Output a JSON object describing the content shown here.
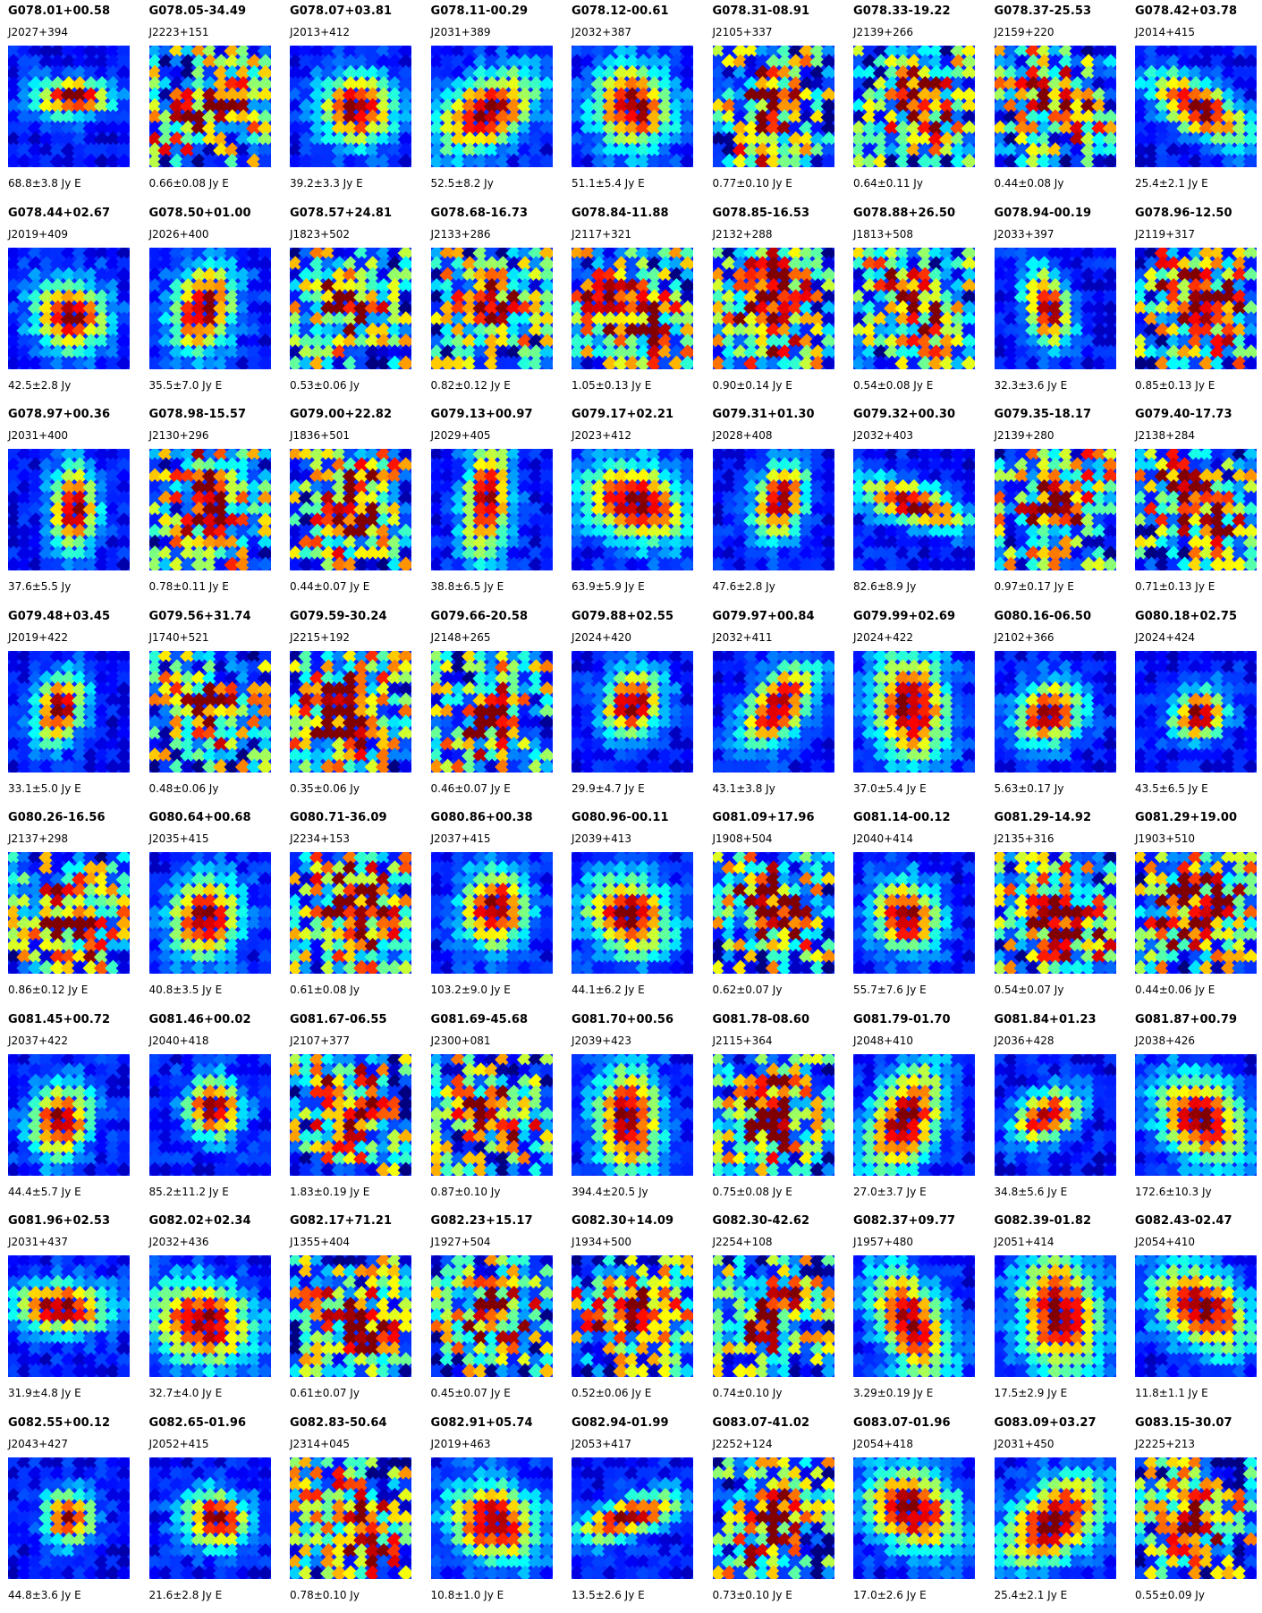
{
  "sources": [
    {
      "name": "G078.01+00.58",
      "jname": "J2027+394",
      "flux": "68.8±3.8 Jy E"
    },
    {
      "name": "G078.05-34.49",
      "jname": "J2223+151",
      "flux": "0.66±0.08 Jy E"
    },
    {
      "name": "G078.07+03.81",
      "jname": "J2013+412",
      "flux": "39.2±3.3 Jy E"
    },
    {
      "name": "G078.11-00.29",
      "jname": "J2031+389",
      "flux": "52.5±8.2 Jy"
    },
    {
      "name": "G078.12-00.61",
      "jname": "J2032+387",
      "flux": "51.1±5.4 Jy E"
    },
    {
      "name": "G078.31-08.91",
      "jname": "J2105+337",
      "flux": "0.77±0.10 Jy E"
    },
    {
      "name": "G078.33-19.22",
      "jname": "J2139+266",
      "flux": "0.64±0.11 Jy"
    },
    {
      "name": "G078.37-25.53",
      "jname": "J2159+220",
      "flux": "0.44±0.08 Jy"
    },
    {
      "name": "G078.42+03.78",
      "jname": "J2014+415",
      "flux": "25.4±2.1 Jy E"
    },
    {
      "name": "G078.44+02.67",
      "jname": "J2019+409",
      "flux": "42.5±2.8 Jy"
    },
    {
      "name": "G078.50+01.00",
      "jname": "J2026+400",
      "flux": "35.5±7.0 Jy E"
    },
    {
      "name": "G078.57+24.81",
      "jname": "J1823+502",
      "flux": "0.53±0.06 Jy"
    },
    {
      "name": "G078.68-16.73",
      "jname": "J2133+286",
      "flux": "0.82±0.12 Jy E"
    },
    {
      "name": "G078.84-11.88",
      "jname": "J2117+321",
      "flux": "1.05±0.13 Jy E"
    },
    {
      "name": "G078.85-16.53",
      "jname": "J2132+288",
      "flux": "0.90±0.14 Jy E"
    },
    {
      "name": "G078.88+26.50",
      "jname": "J1813+508",
      "flux": "0.54±0.08 Jy E"
    },
    {
      "name": "G078.94-00.19",
      "jname": "J2033+397",
      "flux": "32.3±3.6 Jy E"
    },
    {
      "name": "G078.96-12.50",
      "jname": "J2119+317",
      "flux": "0.85±0.13 Jy E"
    },
    {
      "name": "G078.97+00.36",
      "jname": "J2031+400",
      "flux": "37.6±5.5 Jy"
    },
    {
      "name": "G078.98-15.57",
      "jname": "J2130+296",
      "flux": "0.78±0.11 Jy E"
    },
    {
      "name": "G079.00+22.82",
      "jname": "J1836+501",
      "flux": "0.44±0.07 Jy E"
    },
    {
      "name": "G079.13+00.97",
      "jname": "J2029+405",
      "flux": "38.8±6.5 Jy E"
    },
    {
      "name": "G079.17+02.21",
      "jname": "J2023+412",
      "flux": "63.9±5.9 Jy E"
    },
    {
      "name": "G079.31+01.30",
      "jname": "J2028+408",
      "flux": "47.6±2.8 Jy"
    },
    {
      "name": "G079.32+00.30",
      "jname": "J2032+403",
      "flux": "82.6±8.9 Jy"
    },
    {
      "name": "G079.35-18.17",
      "jname": "J2139+280",
      "flux": "0.97±0.17 Jy E"
    },
    {
      "name": "G079.40-17.73",
      "jname": "J2138+284",
      "flux": "0.71±0.13 Jy E"
    },
    {
      "name": "G079.48+03.45",
      "jname": "J2019+422",
      "flux": "33.1±5.0 Jy E"
    },
    {
      "name": "G079.56+31.74",
      "jname": "J1740+521",
      "flux": "0.48±0.06 Jy"
    },
    {
      "name": "G079.59-30.24",
      "jname": "J2215+192",
      "flux": "0.35±0.06 Jy"
    },
    {
      "name": "G079.66-20.58",
      "jname": "J2148+265",
      "flux": "0.46±0.07 Jy E"
    },
    {
      "name": "G079.88+02.55",
      "jname": "J2024+420",
      "flux": "29.9±4.7 Jy E"
    },
    {
      "name": "G079.97+00.84",
      "jname": "J2032+411",
      "flux": "43.1±3.8 Jy"
    },
    {
      "name": "G079.99+02.69",
      "jname": "J2024+422",
      "flux": "37.0±5.4 Jy E"
    },
    {
      "name": "G080.16-06.50",
      "jname": "J2102+366",
      "flux": "5.63±0.17 Jy"
    },
    {
      "name": "G080.18+02.75",
      "jname": "J2024+424",
      "flux": "43.5±6.5 Jy E"
    },
    {
      "name": "G080.26-16.56",
      "jname": "J2137+298",
      "flux": "0.86±0.12 Jy E"
    },
    {
      "name": "G080.64+00.68",
      "jname": "J2035+415",
      "flux": "40.8±3.5 Jy E"
    },
    {
      "name": "G080.71-36.09",
      "jname": "J2234+153",
      "flux": "0.61±0.08 Jy"
    },
    {
      "name": "G080.86+00.38",
      "jname": "J2037+415",
      "flux": "103.2±9.0 Jy E"
    },
    {
      "name": "G080.96-00.11",
      "jname": "J2039+413",
      "flux": "44.1±6.2 Jy E"
    },
    {
      "name": "G081.09+17.96",
      "jname": "J1908+504",
      "flux": "0.62±0.07 Jy"
    },
    {
      "name": "G081.14-00.12",
      "jname": "J2040+414",
      "flux": "55.7±7.6 Jy E"
    },
    {
      "name": "G081.29-14.92",
      "jname": "J2135+316",
      "flux": "0.54±0.07 Jy"
    },
    {
      "name": "G081.29+19.00",
      "jname": "J1903+510",
      "flux": "0.44±0.06 Jy E"
    },
    {
      "name": "G081.45+00.72",
      "jname": "J2037+422",
      "flux": "44.4±5.7 Jy E"
    },
    {
      "name": "G081.46+00.02",
      "jname": "J2040+418",
      "flux": "85.2±11.2 Jy E"
    },
    {
      "name": "G081.67-06.55",
      "jname": "J2107+377",
      "flux": "1.83±0.19 Jy E"
    },
    {
      "name": "G081.69-45.68",
      "jname": "J2300+081",
      "flux": "0.87±0.10 Jy"
    },
    {
      "name": "G081.70+00.56",
      "jname": "J2039+423",
      "flux": "394.4±20.5 Jy"
    },
    {
      "name": "G081.78-08.60",
      "jname": "J2115+364",
      "flux": "0.75±0.08 Jy E"
    },
    {
      "name": "G081.79-01.70",
      "jname": "J2048+410",
      "flux": "27.0±3.7 Jy E"
    },
    {
      "name": "G081.84+01.23",
      "jname": "J2036+428",
      "flux": "34.8±5.6 Jy E"
    },
    {
      "name": "G081.87+00.79",
      "jname": "J2038+426",
      "flux": "172.6±10.3 Jy"
    },
    {
      "name": "G081.96+02.53",
      "jname": "J2031+437",
      "flux": "31.9±4.8 Jy E"
    },
    {
      "name": "G082.02+02.34",
      "jname": "J2032+436",
      "flux": "32.7±4.0 Jy E"
    },
    {
      "name": "G082.17+71.21",
      "jname": "J1355+404",
      "flux": "0.61±0.07 Jy"
    },
    {
      "name": "G082.23+15.17",
      "jname": "J1927+504",
      "flux": "0.45±0.07 Jy E"
    },
    {
      "name": "G082.30+14.09",
      "jname": "J1934+500",
      "flux": "0.52±0.06 Jy E"
    },
    {
      "name": "G082.30-42.62",
      "jname": "J2254+108",
      "flux": "0.74±0.10 Jy"
    },
    {
      "name": "G082.37+09.77",
      "jname": "J1957+480",
      "flux": "3.29±0.19 Jy E"
    },
    {
      "name": "G082.39-01.82",
      "jname": "J2051+414",
      "flux": "17.5±2.9 Jy E"
    },
    {
      "name": "G082.43-02.47",
      "jname": "J2054+410",
      "flux": "11.8±1.1 Jy E"
    },
    {
      "name": "G082.55+00.12",
      "jname": "J2043+427",
      "flux": "44.8±3.6 Jy E"
    },
    {
      "name": "G082.65-01.96",
      "jname": "J2052+415",
      "flux": "21.6±2.8 Jy E"
    },
    {
      "name": "G082.83-50.64",
      "jname": "J2314+045",
      "flux": "0.78±0.10 Jy"
    },
    {
      "name": "G082.91+05.74",
      "jname": "J2019+463",
      "flux": "10.8±1.0 Jy E"
    },
    {
      "name": "G082.94-01.99",
      "jname": "J2053+417",
      "flux": "13.5±2.6 Jy E"
    },
    {
      "name": "G083.07-41.02",
      "jname": "J2252+124",
      "flux": "0.73±0.10 Jy E"
    },
    {
      "name": "G083.07-01.96",
      "jname": "J2054+418",
      "flux": "17.0±2.6 Jy E"
    },
    {
      "name": "G083.09+03.27",
      "jname": "J2031+450",
      "flux": "25.4±2.1 Jy E"
    },
    {
      "name": "G083.15-30.07",
      "jname": "J2225+213",
      "flux": "0.55±0.09 Jy"
    }
  ]
}
